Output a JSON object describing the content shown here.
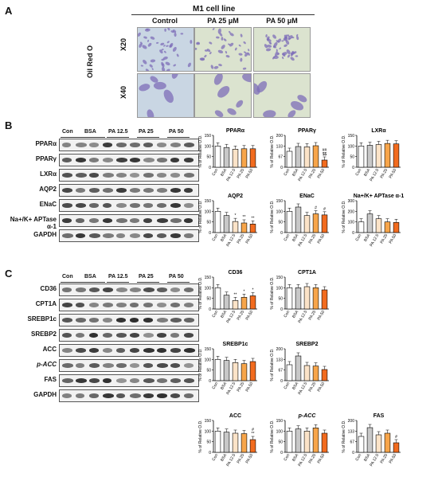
{
  "panelA": {
    "letter": "A",
    "title": "M1 cell line",
    "conditions": [
      "Control",
      "PA 25 μM",
      "PA 50 μM"
    ],
    "stain": "Oil Red O",
    "magnifications": [
      "X20",
      "X40"
    ]
  },
  "panelB": {
    "letter": "B",
    "lanes": [
      "Con",
      "BSA",
      "PA 12.5",
      "PA 25",
      "PA 50"
    ],
    "proteins": [
      "PPARα",
      "PPARγ",
      "LXRα",
      "AQP2",
      "ENaC",
      "Na+/K+ APTase α-1",
      "GAPDH"
    ]
  },
  "panelC": {
    "letter": "C",
    "lanes": [
      "Con",
      "BSA",
      "PA 12.5",
      "PA 25",
      "PA 50"
    ],
    "proteins": [
      "CD36",
      "CPT1A",
      "SREBP1c",
      "SREBP2",
      "ACC",
      "p-ACC",
      "FAS",
      "GAPDH"
    ]
  },
  "chart_data": [
    {
      "type": "bar",
      "title": "PPARα",
      "categories": [
        "Con",
        "BSA",
        "PA 12.5",
        "PA 25",
        "PA 50"
      ],
      "values": [
        100,
        93,
        85,
        87,
        87
      ],
      "ylabel": "% of Relative O.D.",
      "ylim": [
        0,
        150
      ],
      "annotations": [
        "",
        "",
        "",
        "",
        ""
      ]
    },
    {
      "type": "bar",
      "title": "PPARγ",
      "categories": [
        "Con",
        "BSA",
        "PA 12.5",
        "PA 25",
        "PA 50"
      ],
      "values": [
        100,
        130,
        128,
        135,
        45
      ],
      "ylabel": "% of Relative O.D.",
      "ylim": [
        0,
        200
      ],
      "annotations": [
        "",
        "",
        "",
        "",
        "##\n$$"
      ]
    },
    {
      "type": "bar",
      "title": "LXRα",
      "categories": [
        "Con",
        "BSA",
        "PA 12.5",
        "PA 25",
        "PA 50"
      ],
      "values": [
        100,
        103,
        107,
        112,
        110
      ],
      "ylabel": "% of Relative O.D.",
      "ylim": [
        0,
        150
      ],
      "annotations": [
        "",
        "",
        "",
        "",
        ""
      ]
    },
    {
      "type": "bar",
      "title": "AQP2",
      "categories": [
        "Con",
        "BSA",
        "PA 12.5",
        "PA 25",
        "PA 50"
      ],
      "values": [
        100,
        80,
        52,
        45,
        40
      ],
      "ylabel": "% of Relative O.D.",
      "ylim": [
        0,
        150
      ],
      "annotations": [
        "",
        "",
        "*",
        "**",
        "**"
      ]
    },
    {
      "type": "bar",
      "title": "ENaC",
      "categories": [
        "Con",
        "BSA",
        "PA 12.5",
        "PA 25",
        "PA 50"
      ],
      "values": [
        100,
        120,
        80,
        88,
        83
      ],
      "ylabel": "% of Relative O.D.",
      "ylim": [
        0,
        150
      ],
      "annotations": [
        "",
        "",
        "",
        "#",
        "#"
      ]
    },
    {
      "type": "bar",
      "title": "Na+/K+ APTase α-1",
      "categories": [
        "Con",
        "BSA",
        "PA 12.5",
        "PA 25",
        "PA 50"
      ],
      "values": [
        100,
        175,
        130,
        100,
        95
      ],
      "ylabel": "% of Relative O.D.",
      "ylim": [
        0,
        300
      ],
      "annotations": [
        "",
        "",
        "",
        "",
        ""
      ]
    },
    {
      "type": "bar",
      "title": "CD36",
      "categories": [
        "Con",
        "BSA",
        "PA 12.5",
        "PA 25",
        "PA 50"
      ],
      "values": [
        100,
        65,
        40,
        55,
        62
      ],
      "ylabel": "% of Relative O.D.",
      "ylim": [
        0,
        150
      ],
      "annotations": [
        "",
        "",
        "**",
        "*",
        "*"
      ]
    },
    {
      "type": "bar",
      "title": "CPT1A",
      "categories": [
        "Con",
        "BSA",
        "PA 12.5",
        "PA 25",
        "PA 50"
      ],
      "values": [
        100,
        100,
        105,
        100,
        90
      ],
      "ylabel": "% of Relative O.D.",
      "ylim": [
        0,
        150
      ],
      "annotations": [
        "",
        "",
        "",
        "",
        ""
      ]
    },
    {
      "type": "bar",
      "title": "SREBP1c",
      "categories": [
        "Con",
        "BSA",
        "PA 12.5",
        "PA 25",
        "PA 50"
      ],
      "values": [
        100,
        95,
        85,
        80,
        90
      ],
      "ylabel": "% of Relative O.D.",
      "ylim": [
        0,
        150
      ],
      "annotations": [
        "",
        "",
        "",
        "",
        ""
      ]
    },
    {
      "type": "bar",
      "title": "SREBP2",
      "categories": [
        "Con",
        "BSA",
        "PA 12.5",
        "PA 25",
        "PA 50"
      ],
      "values": [
        100,
        155,
        95,
        92,
        70
      ],
      "ylabel": "% of Relative O.D.",
      "ylim": [
        0,
        200
      ],
      "annotations": [
        "",
        "",
        "",
        "",
        ""
      ]
    },
    {
      "type": "bar",
      "title": "ACC",
      "categories": [
        "Con",
        "BSA",
        "PA 12.5",
        "PA 25",
        "PA 50"
      ],
      "values": [
        100,
        95,
        90,
        88,
        60
      ],
      "ylabel": "% of Relative O.D.",
      "ylim": [
        0,
        150
      ],
      "annotations": [
        "",
        "",
        "",
        "",
        "#\n**"
      ]
    },
    {
      "type": "bar",
      "title": "p-ACC",
      "categories": [
        "Con",
        "BSA",
        "PA 12.5",
        "PA 25",
        "PA 50"
      ],
      "values": [
        100,
        110,
        100,
        115,
        90
      ],
      "ylabel": "% of Relative O.D.",
      "ylim": [
        0,
        150
      ],
      "annotations": [
        "",
        "",
        "",
        "",
        ""
      ]
    },
    {
      "type": "bar",
      "title": "FAS",
      "categories": [
        "Con",
        "BSA",
        "PA 12.5",
        "PA 25",
        "PA 50"
      ],
      "values": [
        100,
        155,
        110,
        120,
        60
      ],
      "ylabel": "% of Relative O.D.",
      "ylim": [
        0,
        200
      ],
      "annotations": [
        "",
        "",
        "",
        "",
        "#"
      ]
    }
  ],
  "colors": {
    "bars": [
      "#ffffff",
      "#c8c8c8",
      "#fbe3c8",
      "#f7a54a",
      "#f26b1e"
    ],
    "stain_bg_control": "#c9d6e3",
    "stain_bg_pa": "#dbe3cf",
    "cell": "#7d6db8"
  }
}
